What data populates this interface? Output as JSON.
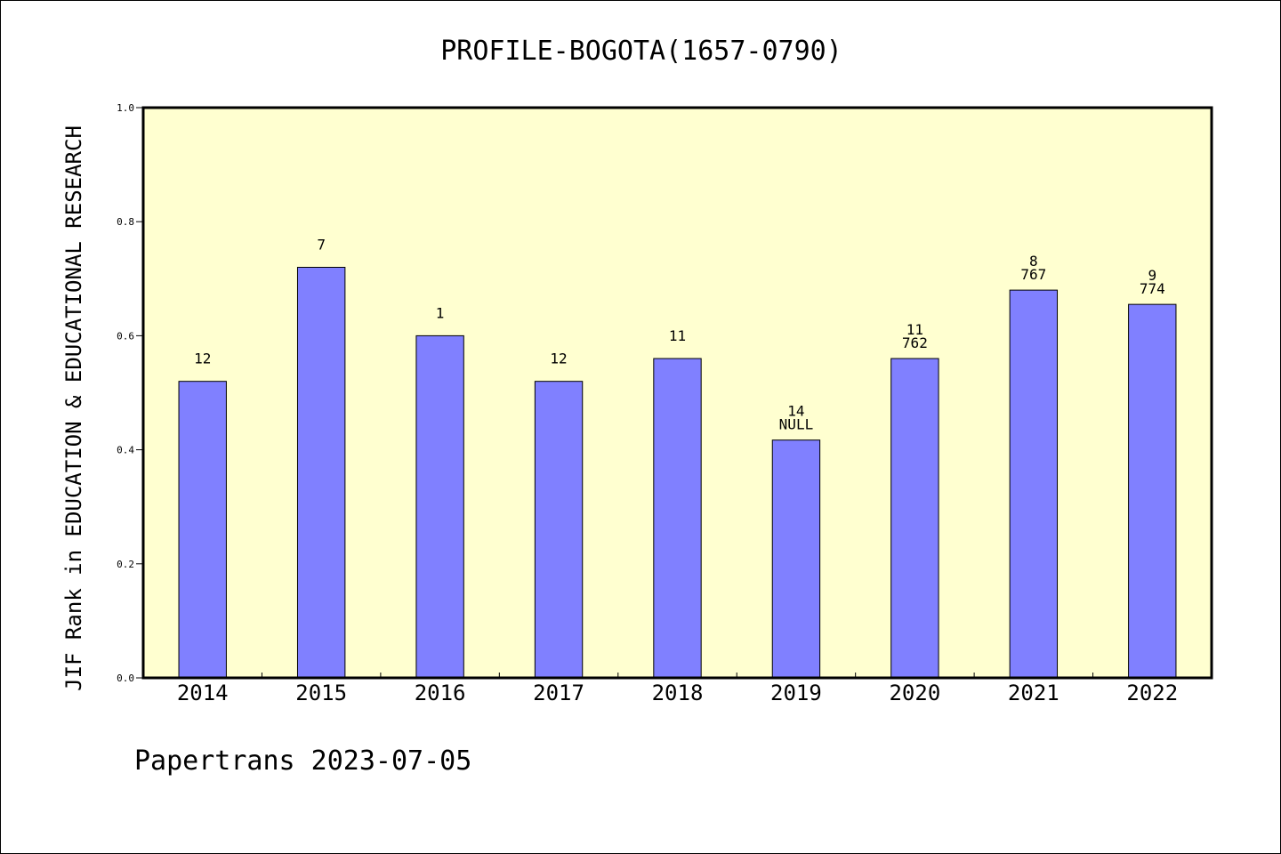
{
  "chart_data": {
    "type": "bar",
    "title": "PROFILE-BOGOTA(1657-0790)",
    "xlabel": "",
    "ylabel": "JIF Rank in EDUCATION & EDUCATIONAL RESEARCH",
    "ylim": [
      0,
      1.0
    ],
    "yticks": [
      "0.0",
      "0.2",
      "0.4",
      "0.6",
      "0.8",
      "1.0"
    ],
    "categories": [
      "2014",
      "2015",
      "2016",
      "2017",
      "2018",
      "2019",
      "2020",
      "2021",
      "2022"
    ],
    "values": [
      0.52,
      0.72,
      0.6,
      0.52,
      0.56,
      0.417,
      0.56,
      0.68,
      0.655
    ],
    "labels_top": [
      "12",
      "7",
      "1",
      "12",
      "11",
      "14",
      "11",
      "8",
      "9"
    ],
    "labels_bottom": [
      "",
      "",
      "",
      "",
      "",
      "NULL",
      "762",
      "767",
      "774"
    ],
    "grid": false,
    "legend": "none",
    "colors": {
      "bar": "#8080ff",
      "plot_background": "#ffffd0",
      "axis": "#000000"
    }
  },
  "footer": "Papertrans 2023-07-05"
}
